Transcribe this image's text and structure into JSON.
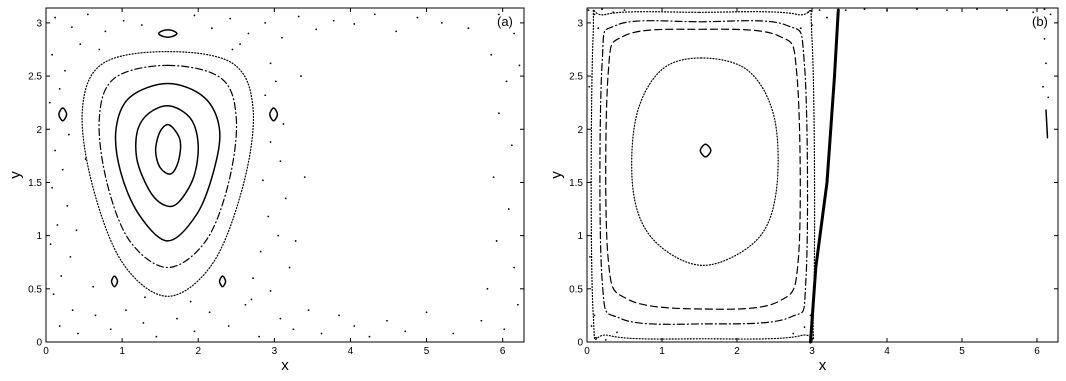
{
  "chart_data": [
    {
      "type": "scatter",
      "panel_label": "(a)",
      "xlabel": "x",
      "ylabel": "y",
      "xlim": [
        0,
        6.28
      ],
      "ylim": [
        0,
        3.14
      ],
      "xticks": [
        0,
        1,
        2,
        3,
        4,
        5,
        6
      ],
      "yticks": [
        0,
        0.5,
        1,
        1.5,
        2,
        2.5,
        3
      ],
      "ytick_labels": [
        "0",
        "0.5",
        "1",
        "1.5",
        "2",
        "2.5",
        "3"
      ],
      "grid": false,
      "legend": "none",
      "series": [
        {
          "style": "solid",
          "points": [
            [
              1.62,
              2.04
            ],
            [
              1.76,
              1.9
            ],
            [
              1.74,
              1.7
            ],
            [
              1.64,
              1.58
            ],
            [
              1.5,
              1.64
            ],
            [
              1.44,
              1.8
            ],
            [
              1.5,
              1.98
            ]
          ]
        },
        {
          "style": "solid",
          "points": [
            [
              1.62,
              2.22
            ],
            [
              1.9,
              2.1
            ],
            [
              2.0,
              1.85
            ],
            [
              1.94,
              1.55
            ],
            [
              1.75,
              1.32
            ],
            [
              1.58,
              1.28
            ],
            [
              1.38,
              1.4
            ],
            [
              1.2,
              1.7
            ],
            [
              1.2,
              1.98
            ],
            [
              1.35,
              2.15
            ]
          ]
        },
        {
          "style": "solid",
          "points": [
            [
              1.6,
              2.43
            ],
            [
              2.08,
              2.3
            ],
            [
              2.28,
              2.0
            ],
            [
              2.2,
              1.6
            ],
            [
              1.98,
              1.2
            ],
            [
              1.6,
              0.95
            ],
            [
              1.22,
              1.2
            ],
            [
              0.98,
              1.6
            ],
            [
              0.92,
              2.0
            ],
            [
              1.1,
              2.3
            ]
          ]
        },
        {
          "style": "dashdot",
          "points": [
            [
              1.6,
              2.6
            ],
            [
              2.3,
              2.48
            ],
            [
              2.5,
              2.1
            ],
            [
              2.4,
              1.5
            ],
            [
              2.1,
              0.95
            ],
            [
              1.6,
              0.7
            ],
            [
              1.1,
              0.95
            ],
            [
              0.8,
              1.5
            ],
            [
              0.7,
              2.1
            ],
            [
              0.9,
              2.48
            ]
          ]
        },
        {
          "style": "dotted",
          "points": [
            [
              1.6,
              2.73
            ],
            [
              2.45,
              2.62
            ],
            [
              2.72,
              2.2
            ],
            [
              2.6,
              1.5
            ],
            [
              2.2,
              0.75
            ],
            [
              1.6,
              0.43
            ],
            [
              1.0,
              0.75
            ],
            [
              0.6,
              1.5
            ],
            [
              0.48,
              2.2
            ],
            [
              0.75,
              2.62
            ]
          ]
        },
        {
          "style": "solid",
          "points": [
            [
              1.65,
              2.93
            ],
            [
              1.72,
              2.9
            ],
            [
              1.65,
              2.87
            ],
            [
              1.55,
              2.87
            ],
            [
              1.48,
              2.9
            ],
            [
              1.55,
              2.93
            ]
          ]
        },
        {
          "style": "solid",
          "points": [
            [
              0.22,
              2.2
            ],
            [
              0.27,
              2.14
            ],
            [
              0.22,
              2.08
            ],
            [
              0.17,
              2.14
            ]
          ]
        },
        {
          "style": "solid",
          "points": [
            [
              2.99,
              2.2
            ],
            [
              3.04,
              2.14
            ],
            [
              2.99,
              2.08
            ],
            [
              2.94,
              2.14
            ]
          ]
        },
        {
          "style": "solid",
          "points": [
            [
              0.9,
              0.62
            ],
            [
              0.94,
              0.57
            ],
            [
              0.9,
              0.52
            ],
            [
              0.86,
              0.57
            ]
          ]
        },
        {
          "style": "solid",
          "points": [
            [
              2.32,
              0.62
            ],
            [
              2.36,
              0.57
            ],
            [
              2.32,
              0.52
            ],
            [
              2.28,
              0.57
            ]
          ]
        }
      ],
      "scatter_points": [
        [
          0.12,
          3.05
        ],
        [
          0.34,
          2.96
        ],
        [
          0.55,
          3.08
        ],
        [
          0.78,
          2.92
        ],
        [
          1.02,
          3.02
        ],
        [
          1.26,
          2.98
        ],
        [
          1.95,
          3.07
        ],
        [
          2.18,
          2.95
        ],
        [
          2.42,
          3.04
        ],
        [
          2.66,
          2.9
        ],
        [
          2.88,
          3.0
        ],
        [
          3.1,
          2.86
        ],
        [
          3.32,
          3.06
        ],
        [
          3.55,
          2.94
        ],
        [
          3.78,
          3.02
        ],
        [
          4.05,
          2.99
        ],
        [
          4.32,
          3.08
        ],
        [
          4.6,
          2.92
        ],
        [
          4.88,
          3.05
        ],
        [
          5.2,
          3.0
        ],
        [
          5.55,
          2.95
        ],
        [
          5.95,
          3.08
        ],
        [
          6.15,
          2.9
        ],
        [
          0.08,
          2.7
        ],
        [
          0.25,
          2.55
        ],
        [
          0.18,
          2.38
        ],
        [
          0.05,
          2.25
        ],
        [
          0.3,
          1.95
        ],
        [
          0.12,
          1.8
        ],
        [
          0.22,
          1.62
        ],
        [
          0.08,
          1.45
        ],
        [
          0.28,
          1.28
        ],
        [
          0.15,
          1.1
        ],
        [
          0.06,
          0.92
        ],
        [
          0.32,
          0.8
        ],
        [
          0.2,
          0.62
        ],
        [
          0.1,
          0.45
        ],
        [
          0.35,
          0.3
        ],
        [
          0.18,
          0.15
        ],
        [
          0.42,
          0.08
        ],
        [
          0.65,
          0.25
        ],
        [
          0.85,
          0.12
        ],
        [
          1.05,
          0.3
        ],
        [
          1.28,
          0.18
        ],
        [
          1.45,
          0.05
        ],
        [
          1.72,
          0.22
        ],
        [
          1.95,
          0.1
        ],
        [
          2.15,
          0.28
        ],
        [
          2.4,
          0.15
        ],
        [
          2.62,
          0.35
        ],
        [
          2.8,
          0.05
        ],
        [
          2.95,
          0.48
        ],
        [
          3.08,
          0.22
        ],
        [
          3.25,
          0.12
        ],
        [
          3.45,
          0.3
        ],
        [
          3.62,
          0.08
        ],
        [
          3.85,
          0.25
        ],
        [
          4.05,
          0.15
        ],
        [
          4.25,
          0.05
        ],
        [
          4.48,
          0.2
        ],
        [
          4.72,
          0.1
        ],
        [
          5.0,
          0.28
        ],
        [
          5.35,
          0.08
        ],
        [
          5.72,
          0.2
        ],
        [
          6.02,
          0.12
        ],
        [
          6.2,
          0.35
        ],
        [
          2.95,
          2.62
        ],
        [
          3.02,
          2.45
        ],
        [
          2.88,
          2.32
        ],
        [
          3.12,
          2.05
        ],
        [
          2.95,
          1.88
        ],
        [
          3.08,
          1.7
        ],
        [
          2.85,
          1.52
        ],
        [
          3.15,
          1.35
        ],
        [
          2.92,
          1.18
        ],
        [
          3.05,
          1.0
        ],
        [
          2.82,
          0.85
        ],
        [
          3.2,
          0.7
        ],
        [
          2.72,
          0.6
        ],
        [
          3.35,
          2.5
        ],
        [
          3.4,
          1.55
        ],
        [
          3.28,
          0.95
        ],
        [
          5.85,
          2.7
        ],
        [
          6.05,
          2.45
        ],
        [
          5.95,
          2.15
        ],
        [
          6.12,
          1.85
        ],
        [
          5.88,
          1.55
        ],
        [
          6.08,
          1.25
        ],
        [
          5.92,
          0.95
        ],
        [
          6.15,
          0.7
        ],
        [
          5.8,
          0.5
        ],
        [
          6.22,
          2.6
        ],
        [
          0.45,
          2.8
        ],
        [
          0.62,
          0.52
        ],
        [
          0.4,
          1.05
        ],
        [
          0.52,
          1.72
        ],
        [
          2.55,
          2.8
        ],
        [
          2.7,
          0.4
        ],
        [
          1.3,
          0.42
        ],
        [
          1.9,
          0.38
        ],
        [
          0.7,
          2.75
        ],
        [
          2.45,
          2.75
        ]
      ]
    },
    {
      "type": "scatter",
      "panel_label": "(b)",
      "xlabel": "x",
      "ylabel": "y",
      "xlim": [
        0,
        6.28
      ],
      "ylim": [
        0,
        3.14
      ],
      "xticks": [
        0,
        1,
        2,
        3,
        4,
        5,
        6
      ],
      "yticks": [
        0,
        0.5,
        1,
        1.5,
        2,
        2.5,
        3
      ],
      "ytick_labels": [
        "0",
        "0.5",
        "1",
        "1.5",
        "2",
        "2.5",
        "3"
      ],
      "grid": false,
      "legend": "none",
      "series": [
        {
          "style": "solid",
          "points": [
            [
              1.58,
              1.86
            ],
            [
              1.65,
              1.8
            ],
            [
              1.58,
              1.74
            ],
            [
              1.51,
              1.8
            ]
          ]
        },
        {
          "style": "dotted",
          "points": [
            [
              1.52,
              2.67
            ],
            [
              2.15,
              2.55
            ],
            [
              2.5,
              2.1
            ],
            [
              2.52,
              1.4
            ],
            [
              2.25,
              0.95
            ],
            [
              1.55,
              0.72
            ],
            [
              0.9,
              0.95
            ],
            [
              0.62,
              1.4
            ],
            [
              0.65,
              2.1
            ],
            [
              0.98,
              2.55
            ]
          ]
        },
        {
          "style": "dashed",
          "points": [
            [
              1.5,
              2.94
            ],
            [
              2.55,
              2.88
            ],
            [
              2.8,
              2.5
            ],
            [
              2.82,
              0.8
            ],
            [
              2.55,
              0.38
            ],
            [
              1.55,
              0.31
            ],
            [
              0.55,
              0.4
            ],
            [
              0.28,
              0.8
            ],
            [
              0.28,
              2.5
            ],
            [
              0.5,
              2.88
            ]
          ]
        },
        {
          "style": "dashdot",
          "points": [
            [
              1.5,
              3.01
            ],
            [
              2.65,
              2.98
            ],
            [
              2.9,
              2.6
            ],
            [
              2.92,
              0.6
            ],
            [
              2.7,
              0.23
            ],
            [
              1.55,
              0.17
            ],
            [
              0.45,
              0.22
            ],
            [
              0.2,
              0.6
            ],
            [
              0.2,
              2.6
            ],
            [
              0.4,
              2.98
            ]
          ]
        },
        {
          "style": "dotted",
          "points": [
            [
              1.5,
              3.1
            ],
            [
              2.8,
              3.08
            ],
            [
              3.0,
              2.85
            ],
            [
              3.02,
              0.3
            ],
            [
              2.85,
              0.06
            ],
            [
              1.55,
              0.03
            ],
            [
              0.3,
              0.06
            ],
            [
              0.08,
              0.3
            ],
            [
              0.08,
              2.85
            ],
            [
              0.25,
              3.08
            ]
          ]
        },
        {
          "style": "solid",
          "points": [
            [
              3.35,
              3.12
            ],
            [
              3.3,
              2.5
            ],
            [
              3.2,
              1.5
            ],
            [
              3.05,
              0.7
            ],
            [
              2.98,
              0.0
            ]
          ]
        },
        {
          "style": "solid",
          "points": [
            [
              6.12,
              2.18
            ],
            [
              6.14,
              1.92
            ]
          ]
        }
      ],
      "scatter_points": [
        [
          0.02,
          3.12
        ],
        [
          0.1,
          3.08
        ],
        [
          0.2,
          3.13
        ],
        [
          0.35,
          3.1
        ],
        [
          0.5,
          3.12
        ],
        [
          2.95,
          3.1
        ],
        [
          3.1,
          3.12
        ],
        [
          3.2,
          3.05
        ],
        [
          2.85,
          2.95
        ],
        [
          0.03,
          2.4
        ],
        [
          0.05,
          1.5
        ],
        [
          0.04,
          0.8
        ],
        [
          0.06,
          0.15
        ],
        [
          0.12,
          0.04
        ],
        [
          0.25,
          0.02
        ],
        [
          0.4,
          0.09
        ],
        [
          2.75,
          0.08
        ],
        [
          2.9,
          0.14
        ],
        [
          3.45,
          3.12
        ],
        [
          3.7,
          3.13
        ],
        [
          4.0,
          3.12
        ],
        [
          4.4,
          3.13
        ],
        [
          4.8,
          3.12
        ],
        [
          5.2,
          3.13
        ],
        [
          5.6,
          3.12
        ],
        [
          5.95,
          3.1
        ],
        [
          6.1,
          3.13
        ],
        [
          6.18,
          3.08
        ],
        [
          6.1,
          2.85
        ],
        [
          6.12,
          2.62
        ],
        [
          6.08,
          2.4
        ],
        [
          6.15,
          2.3
        ],
        [
          0.15,
          2.95
        ],
        [
          0.1,
          0.25
        ],
        [
          2.98,
          0.25
        ],
        [
          3.0,
          2.98
        ]
      ]
    }
  ]
}
